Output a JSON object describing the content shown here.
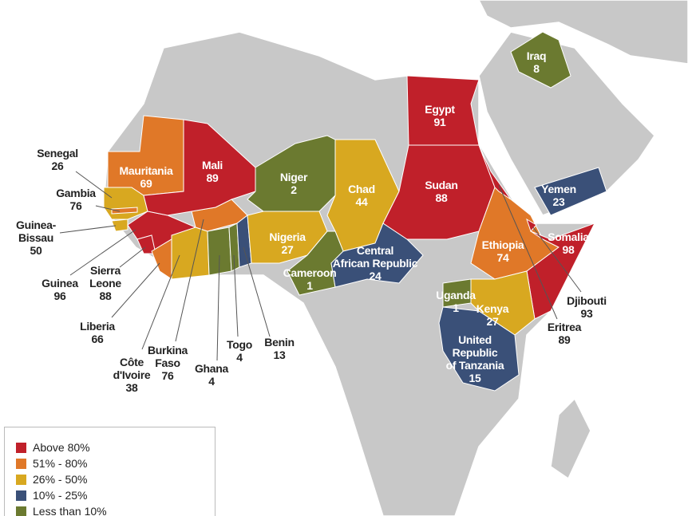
{
  "legend": {
    "items": [
      {
        "label": "Above 80%",
        "color": "#c0202a"
      },
      {
        "label": "51% - 80%",
        "color": "#e07828"
      },
      {
        "label": "26% - 50%",
        "color": "#d8a820"
      },
      {
        "label": "10% - 25%",
        "color": "#3a5078"
      },
      {
        "label": "Less than 10%",
        "color": "#6b7a30"
      }
    ]
  },
  "countries": [
    {
      "name": "Senegal",
      "value": 26,
      "color": "#d8a820"
    },
    {
      "name": "Gambia",
      "value": 76,
      "color": "#e07828"
    },
    {
      "name": "Guinea-\nBissau",
      "value": 50,
      "color": "#d8a820"
    },
    {
      "name": "Guinea",
      "value": 96,
      "color": "#c0202a"
    },
    {
      "name": "Sierra\nLeone",
      "value": 88,
      "color": "#c0202a"
    },
    {
      "name": "Liberia",
      "value": 66,
      "color": "#e07828"
    },
    {
      "name": "Côte\nd'Ivoire",
      "value": 38,
      "color": "#d8a820"
    },
    {
      "name": "Burkina\nFaso",
      "value": 76,
      "color": "#e07828"
    },
    {
      "name": "Ghana",
      "value": 4,
      "color": "#6b7a30"
    },
    {
      "name": "Togo",
      "value": 4,
      "color": "#6b7a30"
    },
    {
      "name": "Benin",
      "value": 13,
      "color": "#3a5078"
    },
    {
      "name": "Mauritania",
      "value": 69,
      "color": "#e07828"
    },
    {
      "name": "Mali",
      "value": 89,
      "color": "#c0202a"
    },
    {
      "name": "Niger",
      "value": 2,
      "color": "#6b7a30"
    },
    {
      "name": "Nigeria",
      "value": 27,
      "color": "#d8a820"
    },
    {
      "name": "Chad",
      "value": 44,
      "color": "#d8a820"
    },
    {
      "name": "Cameroon",
      "value": 1,
      "color": "#6b7a30"
    },
    {
      "name": "Central\nAfrican Republic",
      "value": 24,
      "color": "#3a5078"
    },
    {
      "name": "Egypt",
      "value": 91,
      "color": "#c0202a"
    },
    {
      "name": "Sudan",
      "value": 88,
      "color": "#c0202a"
    },
    {
      "name": "Ethiopia",
      "value": 74,
      "color": "#e07828"
    },
    {
      "name": "Somalia",
      "value": 98,
      "color": "#c0202a"
    },
    {
      "name": "Djibouti",
      "value": 93,
      "color": "#c0202a"
    },
    {
      "name": "Eritrea",
      "value": 89,
      "color": "#c0202a"
    },
    {
      "name": "Uganda",
      "value": 1,
      "color": "#6b7a30"
    },
    {
      "name": "Kenya",
      "value": 27,
      "color": "#d8a820"
    },
    {
      "name": "United\nRepublic\nof Tanzania",
      "value": 15,
      "color": "#3a5078"
    },
    {
      "name": "Yemen",
      "value": 23,
      "color": "#3a5078"
    },
    {
      "name": "Iraq",
      "value": 8,
      "color": "#6b7a30"
    }
  ]
}
